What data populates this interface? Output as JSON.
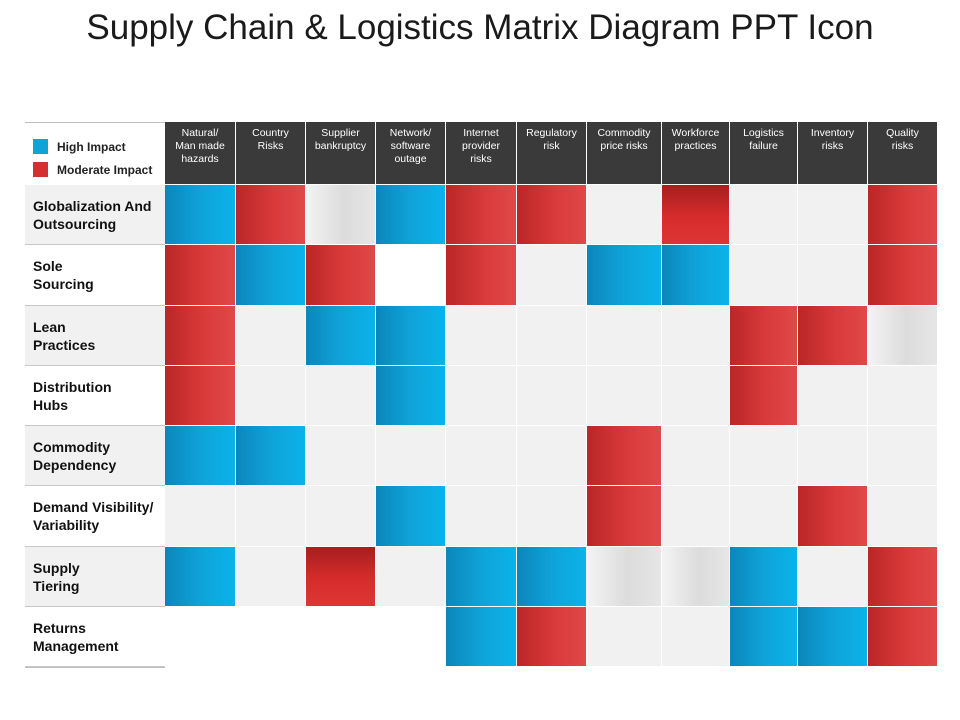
{
  "title": "Supply Chain & Logistics Matrix Diagram PPT Icon",
  "legend": [
    {
      "label": "High Impact",
      "color": "#0fa3d8"
    },
    {
      "label": "Moderate Impact",
      "color": "#d33131"
    }
  ],
  "columns": [
    "Natural/\nMan made\nhazards",
    "Country\nRisks",
    "Supplier\nbankruptcy",
    "Network/\nsoftware\noutage",
    "Internet\nprovider\nrisks",
    "Regulatory\nrisk",
    "Commodity\nprice risks",
    "Workforce\npractices",
    "Logistics\nfailure",
    "Inventory\nrisks",
    "Quality\nrisks"
  ],
  "rows": [
    {
      "label": "Globalization And\nOutsourcing",
      "cells": [
        "high",
        "moderate",
        "grey",
        "high",
        "moderate",
        "moderate",
        "empty",
        "moderate-v",
        "empty",
        "empty",
        "moderate"
      ]
    },
    {
      "label": "Sole\nSourcing",
      "cells": [
        "moderate",
        "high",
        "moderate",
        "white",
        "moderate",
        "empty",
        "high",
        "high",
        "empty",
        "empty",
        "moderate"
      ]
    },
    {
      "label": "Lean\nPractices",
      "cells": [
        "moderate",
        "empty",
        "high",
        "high",
        "empty",
        "empty",
        "empty",
        "empty",
        "moderate",
        "moderate",
        "grey"
      ]
    },
    {
      "label": "Distribution\nHubs",
      "cells": [
        "moderate",
        "empty",
        "empty",
        "high",
        "empty",
        "empty",
        "empty",
        "empty",
        "moderate",
        "empty",
        "empty"
      ]
    },
    {
      "label": "Commodity\nDependency",
      "cells": [
        "high",
        "high",
        "empty",
        "empty",
        "empty",
        "empty",
        "moderate",
        "empty",
        "empty",
        "empty",
        "empty"
      ]
    },
    {
      "label": "Demand Visibility/\nVariability",
      "cells": [
        "empty",
        "empty",
        "empty",
        "high",
        "empty",
        "empty",
        "moderate",
        "empty",
        "empty",
        "moderate",
        "empty"
      ]
    },
    {
      "label": "Supply\nTiering",
      "cells": [
        "high",
        "empty",
        "moderate-v",
        "empty",
        "high",
        "high",
        "grey",
        "grey",
        "high",
        "empty",
        "moderate"
      ]
    },
    {
      "label": "Returns\nManagement",
      "cells": [
        "white",
        "white",
        "white",
        "white",
        "high",
        "moderate",
        "empty",
        "empty",
        "high",
        "high",
        "moderate"
      ]
    }
  ]
}
